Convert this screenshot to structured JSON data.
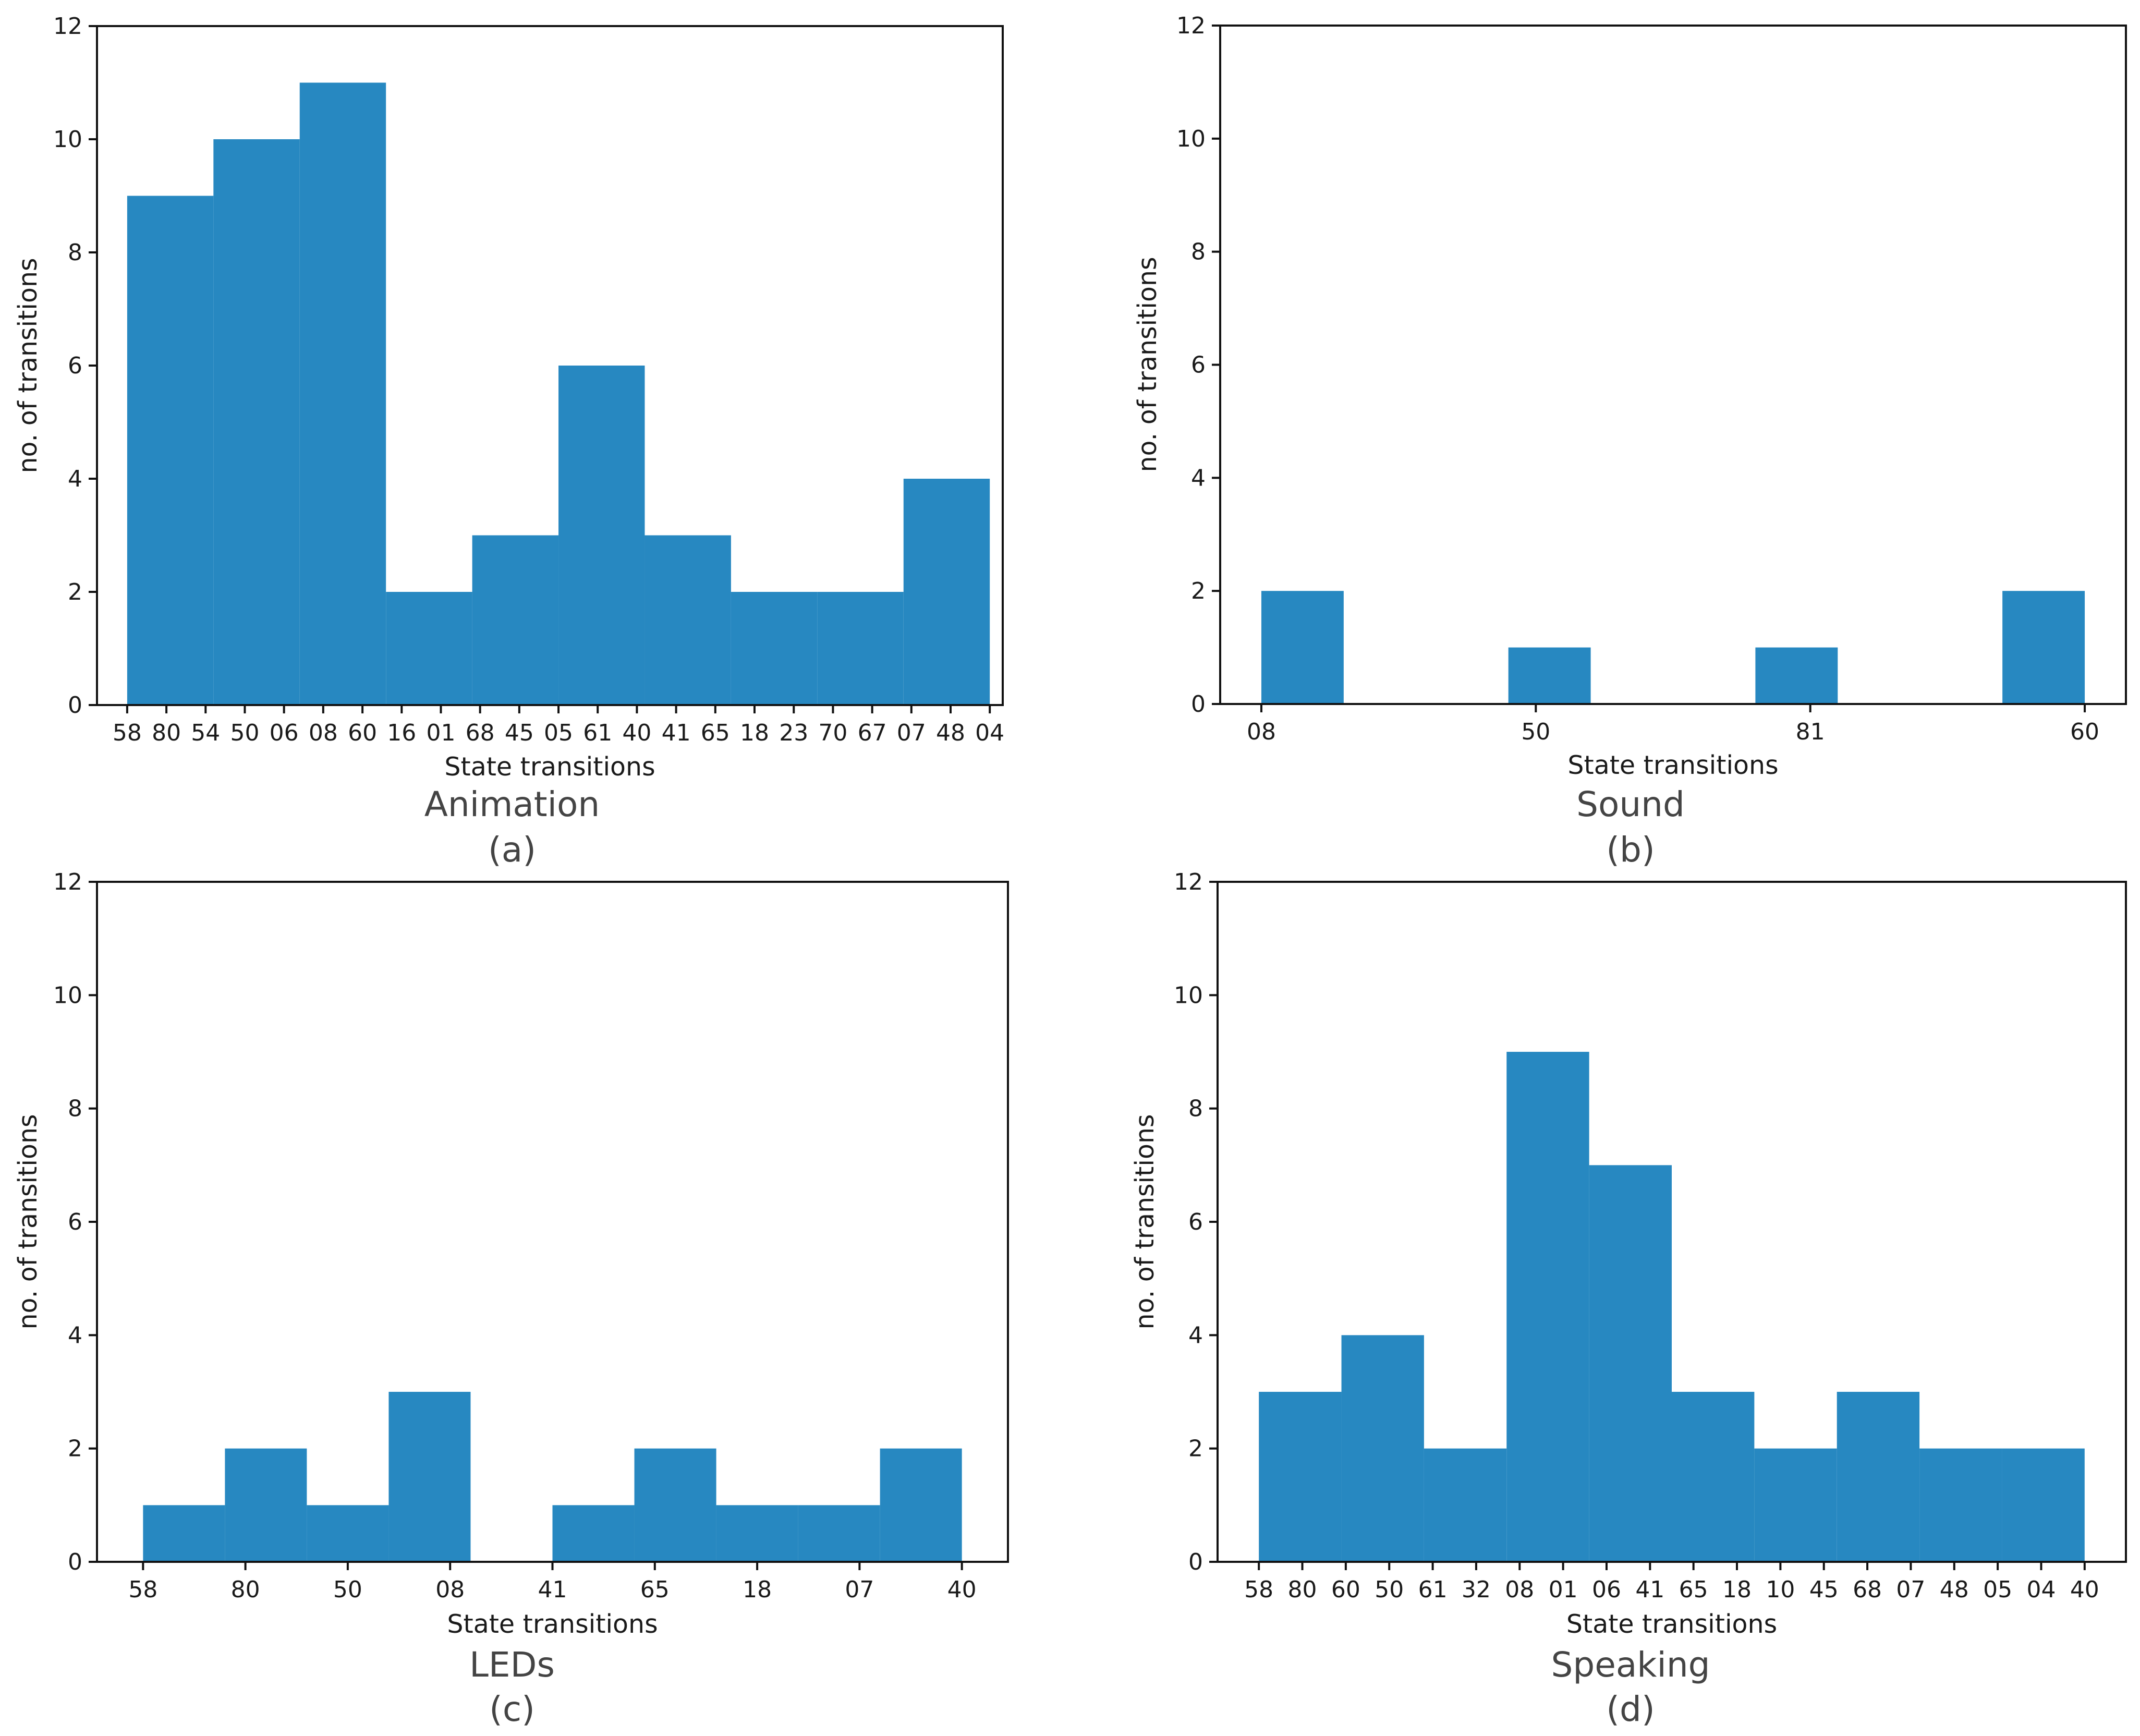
{
  "figure": {
    "bar_color": "#2788c1",
    "axis_color": "#111111"
  },
  "chart_data": [
    {
      "type": "bar",
      "title": "Animation",
      "caption": "(a)",
      "xlabel": "State transitions",
      "ylabel": "no. of transitions",
      "ylim": [
        0,
        12
      ],
      "yticks": [
        0,
        2,
        4,
        6,
        8,
        10,
        12
      ],
      "xlim": [
        -0.7,
        20.3
      ],
      "xticks": [
        "58",
        "80",
        "54",
        "50",
        "06",
        "08",
        "60",
        "16",
        "01",
        "68",
        "45",
        "05",
        "61",
        "40",
        "41",
        "65",
        "18",
        "23",
        "70",
        "67",
        "07",
        "48",
        "04"
      ],
      "xtick_positions": [
        0,
        0.909,
        1.818,
        2.727,
        3.636,
        4.545,
        5.455,
        6.364,
        7.273,
        8.182,
        9.091,
        10,
        10.909,
        11.818,
        12.727,
        13.636,
        14.545,
        15.455,
        16.364,
        17.273,
        18.182,
        19.091,
        20
      ],
      "bins": [
        {
          "start": 0,
          "end": 2,
          "value": 9
        },
        {
          "start": 2,
          "end": 4,
          "value": 10
        },
        {
          "start": 4,
          "end": 6,
          "value": 11
        },
        {
          "start": 6,
          "end": 8,
          "value": 2
        },
        {
          "start": 8,
          "end": 10,
          "value": 3
        },
        {
          "start": 10,
          "end": 12,
          "value": 6
        },
        {
          "start": 12,
          "end": 14,
          "value": 3
        },
        {
          "start": 14,
          "end": 16,
          "value": 2
        },
        {
          "start": 16,
          "end": 18,
          "value": 2
        },
        {
          "start": 18,
          "end": 20,
          "value": 4
        }
      ]
    },
    {
      "type": "bar",
      "title": "Sound",
      "caption": "(b)",
      "xlabel": "State transitions",
      "ylabel": "no. of transitions",
      "ylim": [
        0,
        12
      ],
      "yticks": [
        0,
        2,
        4,
        6,
        8,
        10,
        12
      ],
      "xlim": [
        -0.15,
        3.15
      ],
      "xticks": [
        "08",
        "50",
        "81",
        "60"
      ],
      "xtick_positions": [
        0,
        1,
        2,
        3
      ],
      "bins": [
        {
          "start": 0,
          "end": 0.3,
          "value": 2
        },
        {
          "start": 0.9,
          "end": 1.2,
          "value": 1
        },
        {
          "start": 1.8,
          "end": 2.1,
          "value": 1
        },
        {
          "start": 2.7,
          "end": 3.0,
          "value": 2
        }
      ]
    },
    {
      "type": "bar",
      "title": "LEDs",
      "caption": "(c)",
      "xlabel": "State transitions",
      "ylabel": "no. of transitions",
      "ylim": [
        0,
        12
      ],
      "yticks": [
        0,
        2,
        4,
        6,
        8,
        10,
        12
      ],
      "xlim": [
        -0.45,
        8.45
      ],
      "xticks": [
        "58",
        "80",
        "50",
        "08",
        "41",
        "65",
        "18",
        "07",
        "40"
      ],
      "xtick_positions": [
        0,
        1,
        2,
        3,
        4,
        5,
        6,
        7,
        8
      ],
      "bins": [
        {
          "start": 0,
          "end": 0.8,
          "value": 1
        },
        {
          "start": 0.8,
          "end": 1.6,
          "value": 2
        },
        {
          "start": 1.6,
          "end": 2.4,
          "value": 1
        },
        {
          "start": 2.4,
          "end": 3.2,
          "value": 3
        },
        {
          "start": 3.2,
          "end": 4.0,
          "value": 0
        },
        {
          "start": 4.0,
          "end": 4.8,
          "value": 1
        },
        {
          "start": 4.8,
          "end": 5.6,
          "value": 2
        },
        {
          "start": 5.6,
          "end": 6.4,
          "value": 1
        },
        {
          "start": 6.4,
          "end": 7.2,
          "value": 1
        },
        {
          "start": 7.2,
          "end": 8.0,
          "value": 2
        }
      ]
    },
    {
      "type": "bar",
      "title": "Speaking",
      "caption": "(d)",
      "xlabel": "State transitions",
      "ylabel": "no. of transitions",
      "ylim": [
        0,
        12
      ],
      "yticks": [
        0,
        2,
        4,
        6,
        8,
        10,
        12
      ],
      "xlim": [
        -0.95,
        19.95
      ],
      "xticks": [
        "58",
        "80",
        "60",
        "50",
        "61",
        "32",
        "08",
        "01",
        "06",
        "41",
        "65",
        "18",
        "10",
        "45",
        "68",
        "07",
        "48",
        "05",
        "04",
        "40"
      ],
      "xtick_positions": [
        0,
        1,
        2,
        3,
        4,
        5,
        6,
        7,
        8,
        9,
        10,
        11,
        12,
        13,
        14,
        15,
        16,
        17,
        18,
        19
      ],
      "bins": [
        {
          "start": 0,
          "end": 1.9,
          "value": 3
        },
        {
          "start": 1.9,
          "end": 3.8,
          "value": 4
        },
        {
          "start": 3.8,
          "end": 5.7,
          "value": 2
        },
        {
          "start": 5.7,
          "end": 7.6,
          "value": 9
        },
        {
          "start": 7.6,
          "end": 9.5,
          "value": 7
        },
        {
          "start": 9.5,
          "end": 11.4,
          "value": 3
        },
        {
          "start": 11.4,
          "end": 13.3,
          "value": 2
        },
        {
          "start": 13.3,
          "end": 15.2,
          "value": 3
        },
        {
          "start": 15.2,
          "end": 17.1,
          "value": 2
        },
        {
          "start": 17.1,
          "end": 19.0,
          "value": 2
        }
      ]
    }
  ]
}
